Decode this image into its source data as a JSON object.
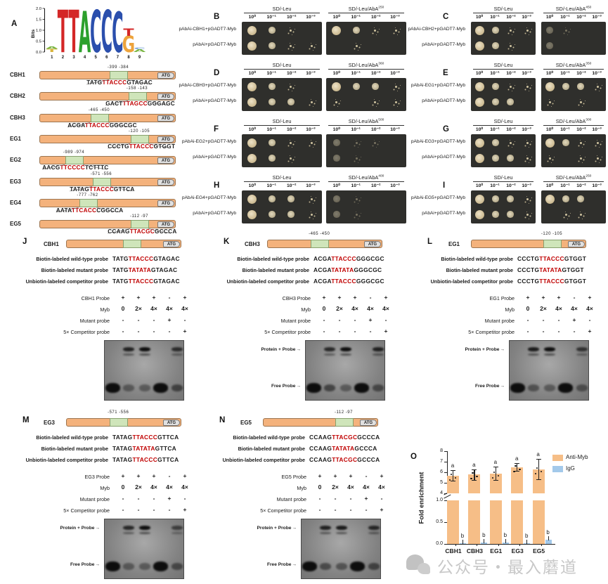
{
  "figure": {
    "watermark": {
      "text": "公众号・最入蘑道",
      "icon": "wechat-icon"
    }
  },
  "panelA": {
    "label": "A",
    "logo": {
      "ylabel": "Bits",
      "yticks": [
        "2.0",
        "1.5",
        "1.0",
        "0.5",
        "0.0"
      ],
      "positions": [
        "1",
        "2",
        "3",
        "4",
        "5",
        "6",
        "7",
        "8",
        "9"
      ],
      "stacks": [
        [
          {
            "char": "T",
            "color": "#d9b43c",
            "bits": 0.14
          },
          {
            "char": "A",
            "color": "#79b543",
            "bits": 0.1
          }
        ],
        [
          {
            "char": "T",
            "color": "#d42727",
            "bits": 1.93
          }
        ],
        [
          {
            "char": "T",
            "color": "#d42727",
            "bits": 1.93
          }
        ],
        [
          {
            "char": "A",
            "color": "#2ca02c",
            "bits": 1.87
          }
        ],
        [
          {
            "char": "C",
            "color": "#2b4fad",
            "bits": 1.9
          }
        ],
        [
          {
            "char": "C",
            "color": "#2b4fad",
            "bits": 1.9
          }
        ],
        [
          {
            "char": "C",
            "color": "#2b4fad",
            "bits": 1.82
          }
        ],
        [
          {
            "char": "G",
            "color": "#eda33b",
            "bits": 0.75
          },
          {
            "char": "T",
            "color": "#d42727",
            "bits": 0.33
          }
        ],
        [
          {
            "char": "A",
            "color": "#79b543",
            "bits": 0.13
          },
          {
            "char": "C",
            "color": "#6f9fd8",
            "bits": 0.09
          }
        ]
      ]
    },
    "atg_label": "ATG",
    "genes": [
      {
        "name": "CBH1",
        "pos1": "-399",
        "pos2": "-384",
        "pre": "TATG",
        "motif": "TTACCC",
        "post": "GTAGAC"
      },
      {
        "name": "CBH2",
        "pos1": "-158",
        "pos2": "-143",
        "pre": "GACT",
        "motif": "TTAGCC",
        "post": "GGGAGC"
      },
      {
        "name": "CBH3",
        "pos1": "-465",
        "pos2": "-450",
        "pre": "ACGA",
        "motif": "TTACCC",
        "post": "GGGCGC"
      },
      {
        "name": "EG1",
        "pos1": "-120",
        "pos2": "-105",
        "pre": "CCCTG",
        "motif": "TTACCC",
        "post": "GTGGT"
      },
      {
        "name": "EG2",
        "pos1": "-989",
        "pos2": "-974",
        "pre": "AACG",
        "motif": "TTCCCC",
        "post": "TCTTTC"
      },
      {
        "name": "EG3",
        "pos1": "-571",
        "pos2": "-556",
        "pre": "TATAG",
        "motif": "TTACCC",
        "post": "GTTCA"
      },
      {
        "name": "EG4",
        "pos1": "-777",
        "pos2": "-762",
        "pre": "AATA",
        "motif": "TTCACC",
        "post": "CGGCCA"
      },
      {
        "name": "EG5",
        "pos1": "-112",
        "pos2": "-97",
        "pre": "CCAAG",
        "motif": "TTACGC",
        "post": "GCCCA"
      }
    ]
  },
  "yeast_panels": [
    {
      "label": "B",
      "rows": [
        "pAbAi-CBH1+pGADT7-Myb",
        "pAbAi+pGADT7-Myb"
      ],
      "left_title": "SD/-Leu",
      "right_title": "SD/-Leu/AbA",
      "aba_sup": "250",
      "dilutions": [
        "10⁰",
        "10⁻¹",
        "10⁻²",
        "10⁻³"
      ],
      "left_spots": [
        [
          3,
          2,
          1,
          0
        ],
        [
          3,
          2,
          1,
          1
        ]
      ],
      "right_spots": [
        [
          3,
          2,
          1,
          1
        ],
        [
          0,
          1,
          0,
          0
        ]
      ],
      "right_faint": false
    },
    {
      "label": "C",
      "rows": [
        "pAbAi-CBH2+pGADT7-Myb",
        "pAbAi+pGADT7-Myb"
      ],
      "left_title": "SD/-Leu",
      "right_title": "SD/-Leu/AbA",
      "aba_sup": "450",
      "dilutions": [
        "10⁰",
        "10⁻¹",
        "10⁻²",
        "10⁻³"
      ],
      "left_spots": [
        [
          3,
          2,
          1,
          1
        ],
        [
          3,
          2,
          1,
          0
        ]
      ],
      "right_spots": [
        [
          2,
          1,
          0,
          0
        ],
        [
          2,
          0,
          0,
          0
        ]
      ],
      "right_faint": true
    },
    {
      "label": "D",
      "rows": [
        "pAbAi-CBH3+pGADT7-Myb",
        "pAbAi+pGADT7-Myb"
      ],
      "left_title": "SD/-Leu",
      "right_title": "SD/-Leu/AbA",
      "aba_sup": "360",
      "dilutions": [
        "10⁰",
        "10⁻¹",
        "10⁻²",
        "10⁻³"
      ],
      "left_spots": [
        [
          3,
          2,
          1,
          0
        ],
        [
          3,
          2,
          2,
          1
        ]
      ],
      "right_spots": [
        [
          3,
          2,
          2,
          1
        ],
        [
          1,
          0,
          1,
          1
        ]
      ],
      "right_faint": false
    },
    {
      "label": "E",
      "rows": [
        "pAbAi-EG1+pGADT7-Myb",
        "pAbAi+pGADT7-Myb"
      ],
      "left_title": "SD/-Leu",
      "right_title": "SD/-Leu/AbA",
      "aba_sup": "350",
      "dilutions": [
        "10⁰",
        "10⁻¹",
        "10⁻²",
        "10⁻³"
      ],
      "left_spots": [
        [
          3,
          2,
          1,
          1
        ],
        [
          3,
          2,
          2,
          0
        ]
      ],
      "right_spots": [
        [
          3,
          2,
          2,
          1
        ],
        [
          1,
          0,
          1,
          0
        ]
      ],
      "right_faint": false
    },
    {
      "label": "F",
      "rows": [
        "pAbAi-EG2+pGADT7-Myb",
        "pAbAi+pGADT7-Myb"
      ],
      "left_title": "SD/-Leu",
      "right_title": "SD/-Leu/AbA",
      "aba_sup": "500",
      "dilutions": [
        "10⁰",
        "10⁻¹",
        "10⁻²",
        "10⁻³"
      ],
      "left_spots": [
        [
          3,
          2,
          1,
          1
        ],
        [
          3,
          2,
          1,
          0
        ]
      ],
      "right_spots": [
        [
          2,
          1,
          1,
          0
        ],
        [
          2,
          1,
          0,
          0
        ]
      ],
      "right_faint": true
    },
    {
      "label": "G",
      "rows": [
        "pAbAi-EG3+pGADT7-Myb",
        "pAbAi+pGADT7-Myb"
      ],
      "left_title": "SD/-Leu",
      "right_title": "SD/-Leu/AbA",
      "aba_sup": "300",
      "dilutions": [
        "10⁰",
        "10⁻¹",
        "10⁻²",
        "10⁻³"
      ],
      "left_spots": [
        [
          3,
          2,
          1,
          1
        ],
        [
          3,
          2,
          2,
          1
        ]
      ],
      "right_spots": [
        [
          3,
          2,
          1,
          1
        ],
        [
          1,
          0,
          1,
          1
        ]
      ],
      "right_faint": false
    },
    {
      "label": "H",
      "rows": [
        "pAbAi-EG4+pGADT7-Myb",
        "pAbAi+pGADT7-Myb"
      ],
      "left_title": "SD/-Leu",
      "right_title": "SD/-Leu/AbA",
      "aba_sup": "400",
      "dilutions": [
        "10⁰",
        "10⁻¹",
        "10⁻²",
        "10⁻³"
      ],
      "left_spots": [
        [
          3,
          2,
          2,
          1
        ],
        [
          3,
          2,
          2,
          1
        ]
      ],
      "right_spots": [
        [
          2,
          1,
          0,
          0
        ],
        [
          2,
          1,
          0,
          0
        ]
      ],
      "right_faint": true
    },
    {
      "label": "I",
      "rows": [
        "pAbAi-EG5+pGADT7-Myb",
        "pAbAi+pGADT7-Myb"
      ],
      "left_title": "SD/-Leu",
      "right_title": "SD/-Leu/AbA",
      "aba_sup": "250",
      "dilutions": [
        "10⁰",
        "10⁻¹",
        "10⁻²",
        "10⁻³"
      ],
      "left_spots": [
        [
          3,
          2,
          2,
          1
        ],
        [
          3,
          2,
          2,
          1
        ]
      ],
      "right_spots": [
        [
          3,
          2,
          2,
          0
        ],
        [
          0,
          1,
          1,
          0
        ]
      ],
      "right_faint": false
    }
  ],
  "emsa_panels": [
    {
      "label": "J",
      "gene": "CBH1",
      "pos1": "",
      "pos2": "",
      "probes": [
        {
          "label": "Biotin-labeled wild-type probe",
          "pre": "TATG",
          "motif": "TTACCC",
          "post": "GTAGAC"
        },
        {
          "label": "Biotin-labeled mutant probe",
          "pre": "TATG",
          "motif": "TATATA",
          "post": "GTAGAC"
        },
        {
          "label": "Unbiotin-labeled competitor probe",
          "pre": "TATG",
          "motif": "TTACCC",
          "post": "GTAGAC"
        }
      ],
      "table": [
        {
          "label": "CBH1  Probe",
          "values": [
            "+",
            "+",
            "+",
            "-",
            "+"
          ]
        },
        {
          "label": "Myb",
          "values": [
            "0",
            "2×",
            "4×",
            "4×",
            "4×"
          ]
        },
        {
          "label": "Mutant probe",
          "values": [
            "-",
            "-",
            "-",
            "+",
            "-"
          ]
        },
        {
          "label": "5× Competitor probe",
          "values": [
            "-",
            "-",
            "-",
            "-",
            "+"
          ]
        }
      ],
      "gel": {
        "shift": [
          0,
          0.85,
          1,
          0,
          0.75
        ],
        "free": [
          1,
          0.4,
          0.3,
          1,
          0.55
        ],
        "labels": null
      }
    },
    {
      "label": "K",
      "gene": "CBH3",
      "pos1": "-465",
      "pos2": "-450",
      "probes": [
        {
          "label": "Biotin-labeled wild-type probe",
          "pre": "ACGA",
          "motif": "TTACCC",
          "post": "GGGCGC"
        },
        {
          "label": "Biotin-labeled mutant probe",
          "pre": "ACGA",
          "motif": "TATATA",
          "post": "GGGCGC"
        },
        {
          "label": "Unbiotin-labeled competitor probe",
          "pre": "ACGA",
          "motif": "TTACCC",
          "post": "GGGCGC"
        }
      ],
      "table": [
        {
          "label": "CBH3  Probe",
          "values": [
            "+",
            "+",
            "+",
            "-",
            "+"
          ]
        },
        {
          "label": "Myb",
          "values": [
            "0",
            "2×",
            "4×",
            "4×",
            "4×"
          ]
        },
        {
          "label": "Mutant probe",
          "values": [
            "-",
            "-",
            "-",
            "+",
            "-"
          ]
        },
        {
          "label": "5× Competitor probe",
          "values": [
            "-",
            "-",
            "-",
            "-",
            "+"
          ]
        }
      ],
      "gel": {
        "shift": [
          0,
          0.8,
          1,
          0,
          0.85
        ],
        "free": [
          1,
          0.55,
          0.35,
          1,
          0.5
        ],
        "labels": [
          "Protein + Probe",
          "Free Probe"
        ]
      }
    },
    {
      "label": "L",
      "gene": "EG1",
      "pos1": "-120",
      "pos2": "-105",
      "probes": [
        {
          "label": "Biotin-labeled wild-type probe",
          "pre": "CCCTG",
          "motif": "TTACCC",
          "post": "GTGGT"
        },
        {
          "label": "Biotin-labeled mutant probe",
          "pre": "CCCTG",
          "motif": "TATATA",
          "post": "GTGGT"
        },
        {
          "label": "Unbiotin-labeled competitor probe",
          "pre": "CCCTG",
          "motif": "TTACCC",
          "post": "GTGGT"
        }
      ],
      "table": [
        {
          "label": "EG1  Probe",
          "values": [
            "+",
            "+",
            "+",
            "-",
            "+"
          ]
        },
        {
          "label": "Myb",
          "values": [
            "0",
            "2×",
            "4×",
            "4×",
            "4×"
          ]
        },
        {
          "label": "Mutant probe",
          "values": [
            "-",
            "-",
            "-",
            "+",
            "-"
          ]
        },
        {
          "label": "5× Competitor probe",
          "values": [
            "-",
            "-",
            "-",
            "-",
            "+"
          ]
        }
      ],
      "gel": {
        "shift": [
          0,
          0.9,
          1,
          0,
          0.7
        ],
        "free": [
          1,
          0.45,
          0.3,
          1,
          0.45
        ],
        "labels": [
          "Protein + Probe",
          "Free Probe"
        ]
      }
    },
    {
      "label": "M",
      "gene": "EG3",
      "pos1": "-571",
      "pos2": "-556",
      "probes": [
        {
          "label": "Biotin-labeled wild-type probe",
          "pre": "TATAG",
          "motif": "TTACCC",
          "post": "GTTCA"
        },
        {
          "label": "Biotin-labeled mutant probe",
          "pre": "TATAG",
          "motif": "TATATA",
          "post": "GTTCA"
        },
        {
          "label": "Unbiotin-labeled competitor probe",
          "pre": "TATAG",
          "motif": "TTACCC",
          "post": "GTTCA"
        }
      ],
      "table": [
        {
          "label": "EG3  Probe",
          "values": [
            "+",
            "+",
            "+",
            "-",
            "+"
          ]
        },
        {
          "label": "Myb",
          "values": [
            "0",
            "2×",
            "4×",
            "4×",
            "4×"
          ]
        },
        {
          "label": "Mutant probe",
          "values": [
            "-",
            "-",
            "-",
            "+",
            "-"
          ]
        },
        {
          "label": "5× Competitor probe",
          "values": [
            "-",
            "-",
            "-",
            "-",
            "+"
          ]
        }
      ],
      "gel": {
        "shift": [
          0,
          0.8,
          1,
          0,
          0.6
        ],
        "free": [
          1,
          0.4,
          0.3,
          1,
          0.5
        ],
        "labels": [
          "Protein + Probe",
          "Free Probe"
        ]
      }
    },
    {
      "label": "N",
      "gene": "EG5",
      "pos1": "-112",
      "pos2": "-97",
      "probes": [
        {
          "label": "Biotin-labeled wild-type probe",
          "pre": "CCAAG",
          "motif": "TTACGC",
          "post": "GCCCA"
        },
        {
          "label": "Biotin-labeled mutant probe",
          "pre": "CCAAG",
          "motif": "TATATA",
          "post": "GCCCA"
        },
        {
          "label": "Unbiotin-labeled competitor probe",
          "pre": "CCAAG",
          "motif": "TTACGC",
          "post": "GCCCA"
        }
      ],
      "table": [
        {
          "label": "EG5  Probe",
          "values": [
            "+",
            "+",
            "+",
            "-",
            "+"
          ]
        },
        {
          "label": "Myb",
          "values": [
            "0",
            "2×",
            "4×",
            "4×",
            "4×"
          ]
        },
        {
          "label": "Mutant probe",
          "values": [
            "-",
            "-",
            "-",
            "+",
            "-"
          ]
        },
        {
          "label": "5× Competitor probe",
          "values": [
            "-",
            "-",
            "-",
            "-",
            "+"
          ]
        }
      ],
      "gel": {
        "shift": [
          0,
          0.85,
          0.9,
          0,
          0.8
        ],
        "free": [
          1,
          0.5,
          0.45,
          1,
          0.55
        ],
        "labels": [
          "Protein + Probe",
          "Free Probe"
        ]
      }
    }
  ],
  "chart_data": {
    "type": "bar",
    "panel_label": "O",
    "ylabel": "Fold enrichment",
    "categories": [
      "CBH1",
      "CBH3",
      "EG1",
      "EG3",
      "EG5"
    ],
    "series": [
      {
        "name": "Anti-Myb",
        "color": "#F6BE87",
        "values": [
          5.7,
          5.8,
          5.9,
          6.5,
          6.3
        ],
        "errors": [
          0.5,
          0.5,
          0.65,
          0.35,
          0.95
        ],
        "sig_letter": "a"
      },
      {
        "name": "IgG",
        "color": "#A3C9EA",
        "values": [
          0.02,
          0.03,
          0.03,
          0.02,
          0.09
        ],
        "errors": [
          0.03,
          0.04,
          0.04,
          0.03,
          0.05
        ],
        "sig_letter": "b"
      }
    ],
    "axis_break": true,
    "top_axis": {
      "range": [
        4,
        8
      ],
      "ticks": [
        "8",
        "7",
        "6",
        "5",
        "4"
      ]
    },
    "bottom_axis": {
      "range": [
        0,
        1
      ],
      "ticks": [
        "1.0",
        "0.5",
        "0.0"
      ]
    },
    "legend_position": "top-right"
  }
}
